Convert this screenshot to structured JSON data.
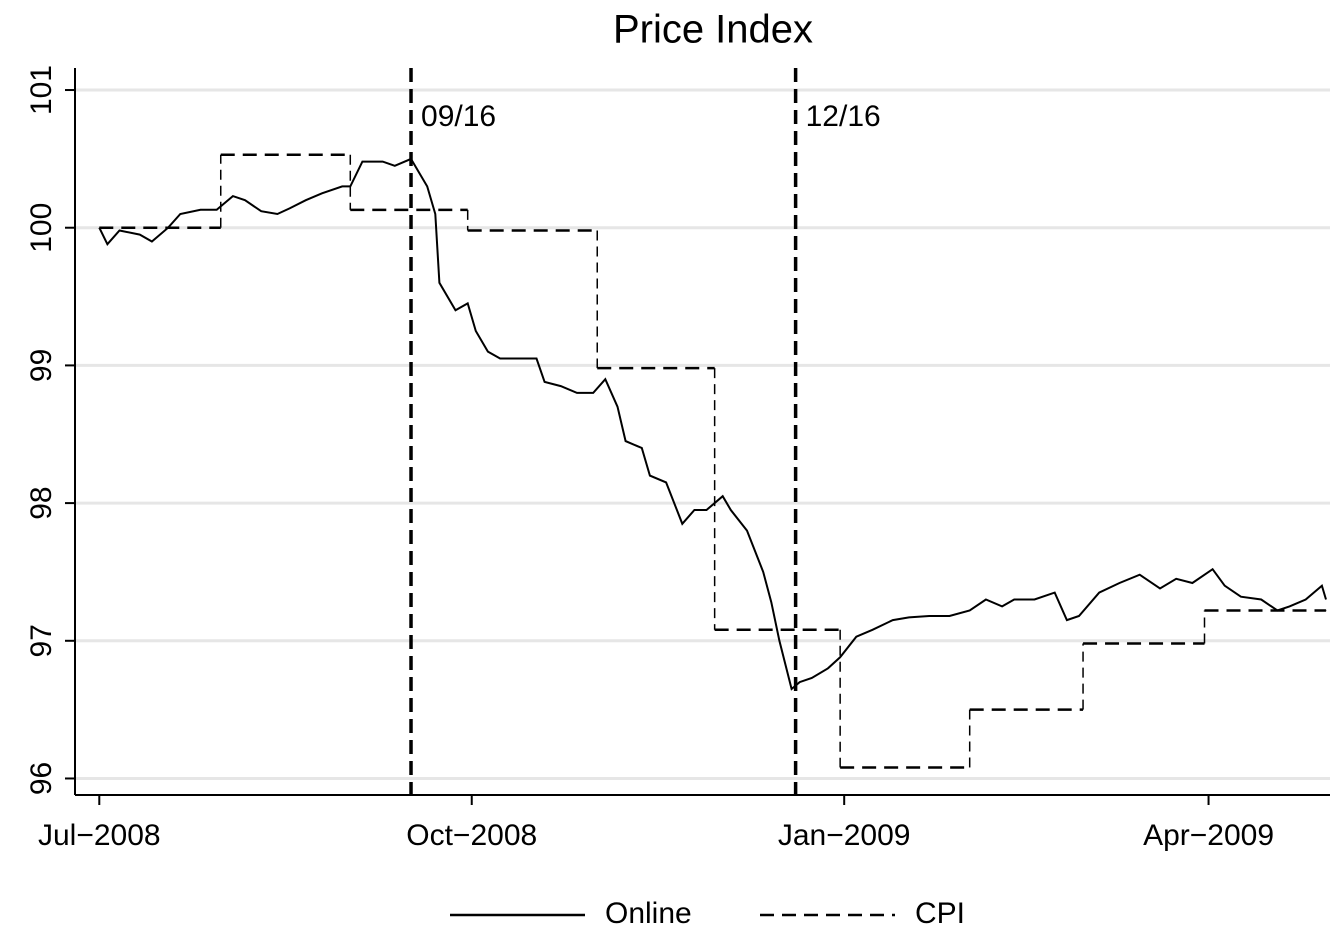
{
  "chart_data": {
    "type": "line",
    "title": "Price Index",
    "xlim": [
      -6,
      304
    ],
    "xticks": [
      {
        "value": 0,
        "label": "Jul−2008"
      },
      {
        "value": 92,
        "label": "Oct−2008"
      },
      {
        "value": 184,
        "label": "Jan−2009"
      },
      {
        "value": 274,
        "label": "Apr−2009"
      }
    ],
    "ylim": [
      95.88,
      101.16
    ],
    "yticks": [
      96,
      97,
      98,
      99,
      100,
      101
    ],
    "grid": true,
    "legend": "bottom",
    "annotations": [
      {
        "x": 77,
        "label": "09/16"
      },
      {
        "x": 172,
        "label": "12/16"
      }
    ],
    "series": [
      {
        "name": "Online",
        "color": "#000000",
        "style": "solid",
        "x": [
          0,
          2,
          5,
          10,
          13,
          17,
          20,
          25,
          29,
          33,
          36,
          40,
          44,
          47,
          51,
          55,
          60,
          62,
          65,
          70,
          73,
          77,
          81,
          83,
          84,
          88,
          91,
          93,
          96,
          99,
          104,
          108,
          110,
          114,
          118,
          122,
          125,
          128,
          130,
          134,
          136,
          140,
          144,
          147,
          150,
          154,
          156,
          160,
          164,
          166,
          168,
          171,
          173,
          176,
          180,
          183,
          187,
          191,
          196,
          200,
          205,
          210,
          215,
          219,
          223,
          226,
          231,
          236,
          239,
          242,
          247,
          252,
          257,
          262,
          266,
          270,
          275,
          278,
          282,
          287,
          291,
          294,
          298,
          302,
          303
        ],
        "values": [
          100.0,
          99.88,
          99.98,
          99.95,
          99.9,
          100.0,
          100.1,
          100.13,
          100.13,
          100.23,
          100.2,
          100.12,
          100.1,
          100.14,
          100.2,
          100.25,
          100.3,
          100.3,
          100.48,
          100.48,
          100.45,
          100.5,
          100.3,
          100.1,
          99.6,
          99.4,
          99.45,
          99.25,
          99.1,
          99.05,
          99.05,
          99.05,
          98.88,
          98.85,
          98.8,
          98.8,
          98.9,
          98.7,
          98.45,
          98.4,
          98.2,
          98.15,
          97.85,
          97.95,
          97.95,
          98.05,
          97.95,
          97.8,
          97.5,
          97.28,
          97.0,
          96.65,
          96.7,
          96.73,
          96.8,
          96.88,
          97.03,
          97.08,
          97.15,
          97.17,
          97.18,
          97.18,
          97.22,
          97.3,
          97.25,
          97.3,
          97.3,
          97.35,
          97.15,
          97.18,
          97.35,
          97.42,
          97.48,
          97.38,
          97.45,
          97.42,
          97.52,
          97.4,
          97.32,
          97.3,
          97.22,
          97.25,
          97.3,
          97.4,
          97.3
        ]
      },
      {
        "name": "CPI",
        "color": "#000000",
        "style": "dashed",
        "drawstyle": "steps-post",
        "x": [
          0,
          30,
          62,
          91,
          123,
          152,
          183,
          215,
          243,
          273,
          303
        ],
        "values": [
          100.0,
          100.53,
          100.13,
          99.98,
          98.98,
          97.08,
          96.08,
          96.5,
          96.98,
          97.22,
          97.22
        ]
      }
    ]
  }
}
